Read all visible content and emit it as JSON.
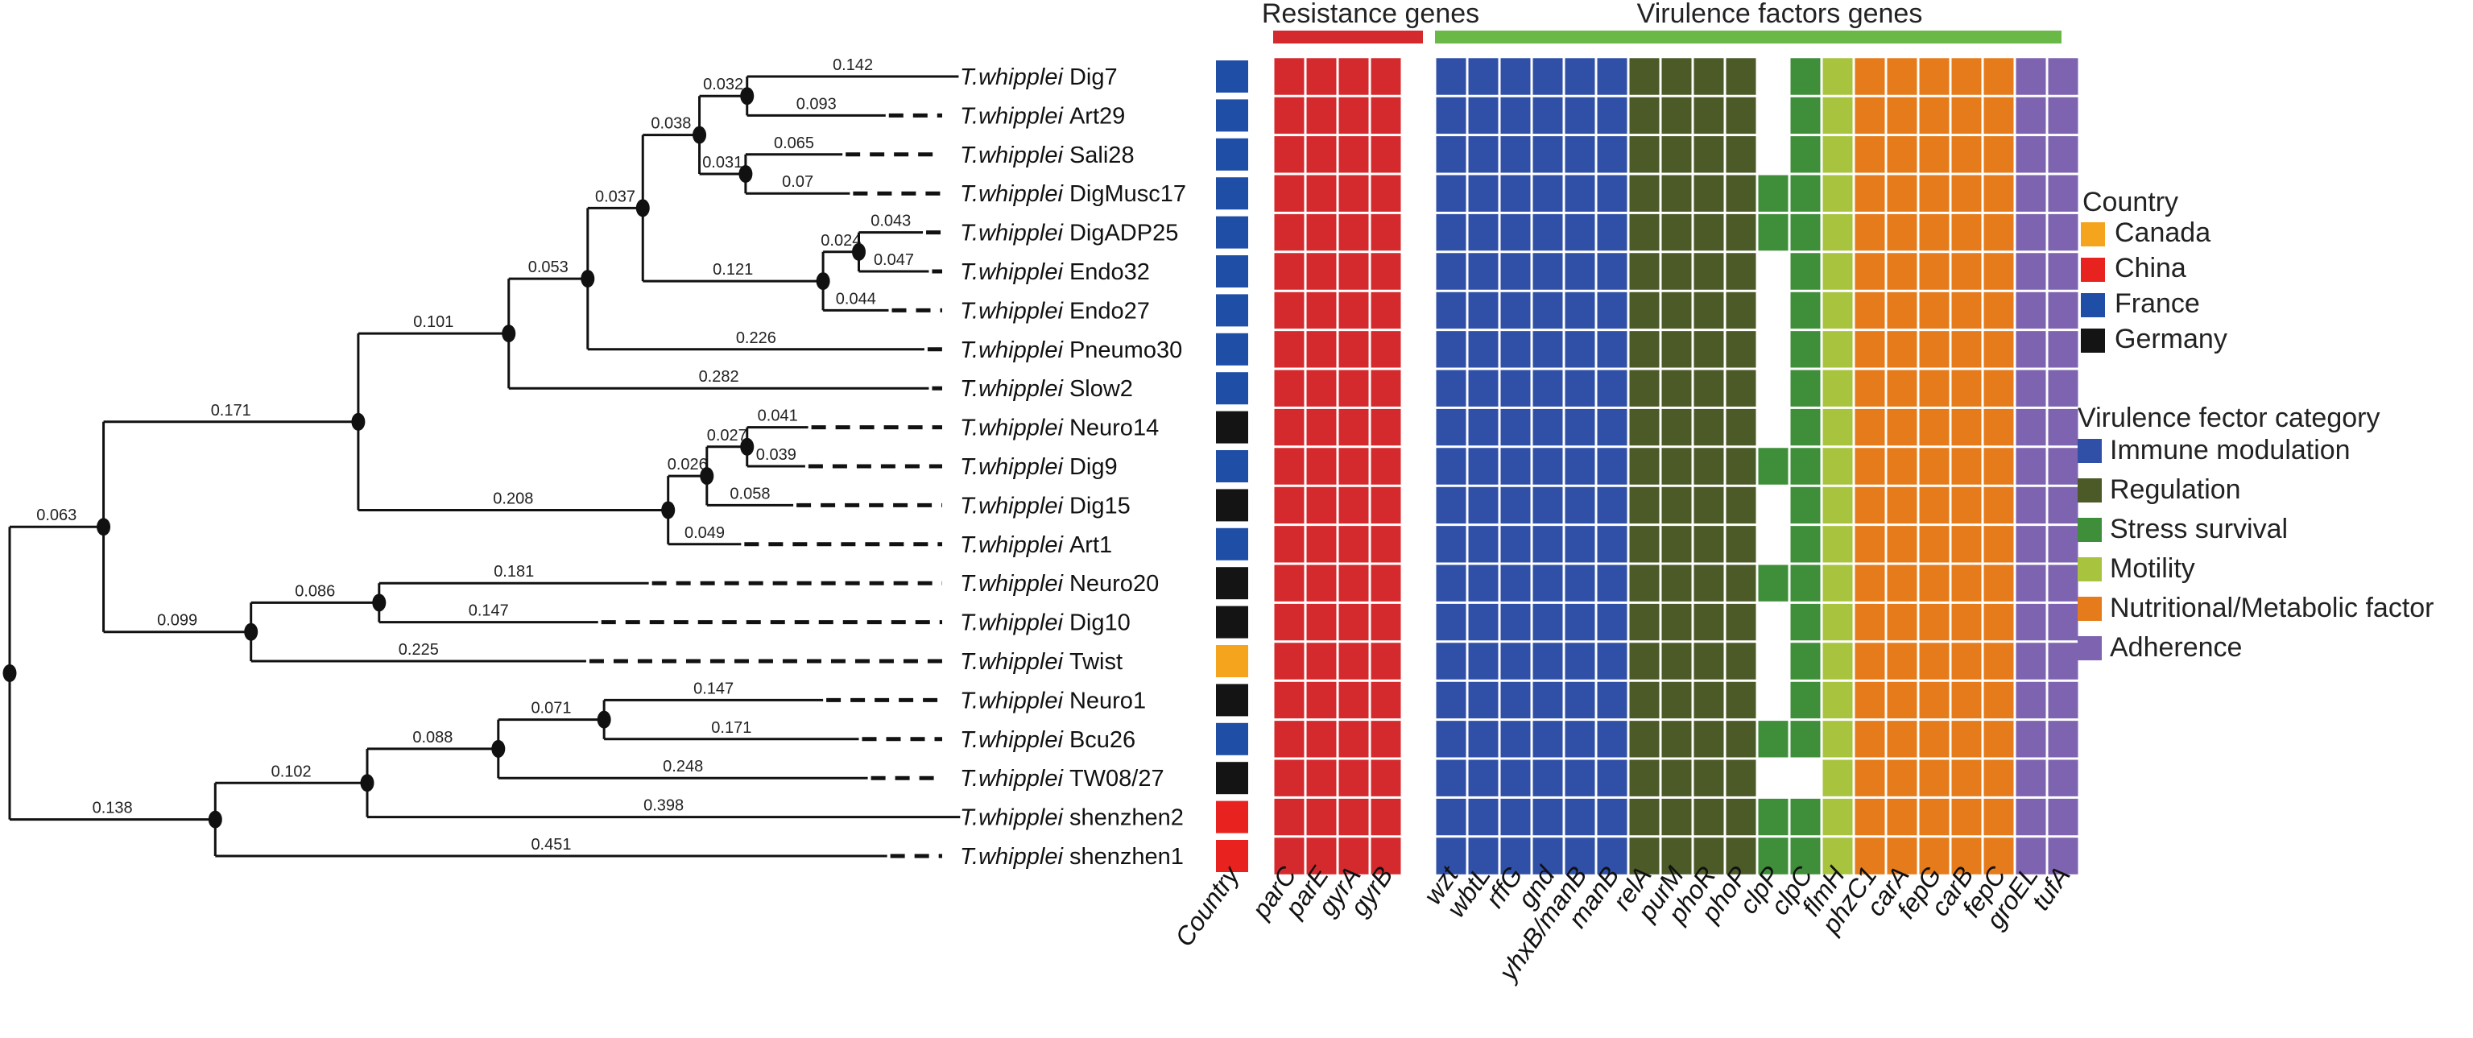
{
  "header": {
    "resistance_label": "Resistance genes",
    "virulence_label": "Virulence factors genes",
    "resistance_color": "#d42a2e",
    "virulence_color": "#6ab845"
  },
  "tree": {
    "nodes": [
      {
        "id": "root",
        "parent": null,
        "depth": 0,
        "marker": true
      },
      {
        "id": "A",
        "parent": "root",
        "depth": 0.063,
        "marker": true,
        "label": "0.063"
      },
      {
        "id": "B",
        "parent": "root",
        "depth": 0.138,
        "marker": true,
        "label": "0.138"
      },
      {
        "id": "C",
        "parent": "A",
        "depth": 0.234,
        "marker": true,
        "label": "0.171"
      },
      {
        "id": "D",
        "parent": "A",
        "depth": 0.162,
        "marker": true,
        "label": "0.099"
      },
      {
        "id": "E",
        "parent": "C",
        "depth": 0.335,
        "marker": true,
        "label": "0.101"
      },
      {
        "id": "F",
        "parent": "E",
        "depth": 0.388,
        "marker": true,
        "label": "0.053"
      },
      {
        "id": "G",
        "parent": "F",
        "depth": 0.425,
        "marker": true,
        "label": "0.037"
      },
      {
        "id": "H",
        "parent": "G",
        "depth": 0.463,
        "marker": true,
        "label": "0.038"
      },
      {
        "id": "I",
        "parent": "H",
        "depth": 0.495,
        "marker": true,
        "label": "0.032"
      },
      {
        "id": "J",
        "parent": "H",
        "depth": 0.494,
        "marker": true,
        "label": "0.031"
      },
      {
        "id": "K",
        "parent": "G",
        "depth": 0.546,
        "marker": true,
        "label": "0.121"
      },
      {
        "id": "L",
        "parent": "K",
        "depth": 0.57,
        "marker": true,
        "label": "0.024"
      },
      {
        "id": "M",
        "parent": "C",
        "depth": 0.442,
        "marker": true,
        "label": "0.208"
      },
      {
        "id": "N",
        "parent": "M",
        "depth": 0.468,
        "marker": true,
        "label": "0.026"
      },
      {
        "id": "O",
        "parent": "N",
        "depth": 0.495,
        "marker": true,
        "label": "0.027"
      },
      {
        "id": "P",
        "parent": "D",
        "depth": 0.248,
        "marker": true,
        "label": "0.086"
      },
      {
        "id": "Q",
        "parent": "B",
        "depth": 0.24,
        "marker": true,
        "label": "0.102"
      },
      {
        "id": "R",
        "parent": "Q",
        "depth": 0.328,
        "marker": true,
        "label": "0.088"
      },
      {
        "id": "S",
        "parent": "R",
        "depth": 0.399,
        "marker": true,
        "label": "0.071"
      }
    ],
    "leaves": [
      {
        "parent": "I",
        "depth": 0.637,
        "label": "0.142"
      },
      {
        "parent": "I",
        "depth": 0.588,
        "label": "0.093"
      },
      {
        "parent": "J",
        "depth": 0.559,
        "label": "0.065"
      },
      {
        "parent": "J",
        "depth": 0.564,
        "label": "0.07"
      },
      {
        "parent": "L",
        "depth": 0.613,
        "label": "0.043"
      },
      {
        "parent": "L",
        "depth": 0.617,
        "label": "0.047"
      },
      {
        "parent": "K",
        "depth": 0.59,
        "label": "0.044"
      },
      {
        "parent": "F",
        "depth": 0.614,
        "label": "0.226"
      },
      {
        "parent": "E",
        "depth": 0.617,
        "label": "0.282"
      },
      {
        "parent": "O",
        "depth": 0.536,
        "label": "0.041"
      },
      {
        "parent": "O",
        "depth": 0.534,
        "label": "0.039"
      },
      {
        "parent": "N",
        "depth": 0.526,
        "label": "0.058"
      },
      {
        "parent": "M",
        "depth": 0.491,
        "label": "0.049"
      },
      {
        "parent": "P",
        "depth": 0.429,
        "label": "0.181"
      },
      {
        "parent": "P",
        "depth": 0.395,
        "label": "0.147"
      },
      {
        "parent": "D",
        "depth": 0.387,
        "label": "0.225"
      },
      {
        "parent": "S",
        "depth": 0.546,
        "label": "0.147"
      },
      {
        "parent": "S",
        "depth": 0.57,
        "label": "0.171"
      },
      {
        "parent": "R",
        "depth": 0.576,
        "label": "0.248"
      },
      {
        "parent": "Q",
        "depth": 0.638,
        "label": "0.398"
      },
      {
        "parent": "B",
        "depth": 0.589,
        "label": "0.451"
      }
    ]
  },
  "strains": [
    {
      "genus": "T.whipplei",
      "name": "Dig7",
      "country": "France"
    },
    {
      "genus": "T.whipplei",
      "name": "Art29",
      "country": "France"
    },
    {
      "genus": "T.whipplei",
      "name": "Sali28",
      "country": "France"
    },
    {
      "genus": "T.whipplei",
      "name": "DigMusc17",
      "country": "France"
    },
    {
      "genus": "T.whipplei",
      "name": "DigADP25",
      "country": "France"
    },
    {
      "genus": "T.whipplei",
      "name": "Endo32",
      "country": "France"
    },
    {
      "genus": "T.whipplei",
      "name": "Endo27",
      "country": "France"
    },
    {
      "genus": "T.whipplei",
      "name": "Pneumo30",
      "country": "France"
    },
    {
      "genus": "T.whipplei",
      "name": "Slow2",
      "country": "France"
    },
    {
      "genus": "T.whipplei",
      "name": "Neuro14",
      "country": "Germany"
    },
    {
      "genus": "T.whipplei",
      "name": "Dig9",
      "country": "France"
    },
    {
      "genus": "T.whipplei",
      "name": "Dig15",
      "country": "Germany"
    },
    {
      "genus": "T.whipplei",
      "name": "Art1",
      "country": "France"
    },
    {
      "genus": "T.whipplei",
      "name": "Neuro20",
      "country": "Germany"
    },
    {
      "genus": "T.whipplei",
      "name": "Dig10",
      "country": "Germany"
    },
    {
      "genus": "T.whipplei",
      "name": "Twist",
      "country": "Canada"
    },
    {
      "genus": "T.whipplei",
      "name": "Neuro1",
      "country": "Germany"
    },
    {
      "genus": "T.whipplei",
      "name": "Bcu26",
      "country": "France"
    },
    {
      "genus": "T.whipplei",
      "name": "TW08/27",
      "country": "Germany"
    },
    {
      "genus": "T.whipplei",
      "name": "shenzhen2",
      "country": "China"
    },
    {
      "genus": "T.whipplei",
      "name": "shenzhen1",
      "country": "China"
    }
  ],
  "countries": {
    "Canada": "#f5a41d",
    "China": "#e8231f",
    "France": "#1f4ea6",
    "Germany": "#141414"
  },
  "categories": {
    "Resistance": "#d42a2e",
    "Immune modulation": "#3050a8",
    "Regulation": "#4b5a27",
    "Stress survival": "#3f8f3a",
    "Motility": "#a8c43e",
    "Nutritional/Metabolic factor": "#e57b1a",
    "Adherence": "#7e63b0"
  },
  "genes": [
    {
      "name": "parC",
      "category": "Resistance",
      "present": [
        1,
        1,
        1,
        1,
        1,
        1,
        1,
        1,
        1,
        1,
        1,
        1,
        1,
        1,
        1,
        1,
        1,
        1,
        1,
        1,
        1
      ]
    },
    {
      "name": "parE",
      "category": "Resistance",
      "present": [
        1,
        1,
        1,
        1,
        1,
        1,
        1,
        1,
        1,
        1,
        1,
        1,
        1,
        1,
        1,
        1,
        1,
        1,
        1,
        1,
        1
      ]
    },
    {
      "name": "gyrA",
      "category": "Resistance",
      "present": [
        1,
        1,
        1,
        1,
        1,
        1,
        1,
        1,
        1,
        1,
        1,
        1,
        1,
        1,
        1,
        1,
        1,
        1,
        1,
        1,
        1
      ]
    },
    {
      "name": "gyrB",
      "category": "Resistance",
      "present": [
        1,
        1,
        1,
        1,
        1,
        1,
        1,
        1,
        1,
        1,
        1,
        1,
        1,
        1,
        1,
        1,
        1,
        1,
        1,
        1,
        1
      ]
    },
    {
      "name": "wzt",
      "category": "Immune modulation",
      "present": [
        1,
        1,
        1,
        1,
        1,
        1,
        1,
        1,
        1,
        1,
        1,
        1,
        1,
        1,
        1,
        1,
        1,
        1,
        1,
        1,
        1
      ]
    },
    {
      "name": "wbtL",
      "category": "Immune modulation",
      "present": [
        1,
        1,
        1,
        1,
        1,
        1,
        1,
        1,
        1,
        1,
        1,
        1,
        1,
        1,
        1,
        1,
        1,
        1,
        1,
        1,
        1
      ]
    },
    {
      "name": "rffG",
      "category": "Immune modulation",
      "present": [
        1,
        1,
        1,
        1,
        1,
        1,
        1,
        1,
        1,
        1,
        1,
        1,
        1,
        1,
        1,
        1,
        1,
        1,
        1,
        1,
        1
      ]
    },
    {
      "name": "gnd",
      "category": "Immune modulation",
      "present": [
        1,
        1,
        1,
        1,
        1,
        1,
        1,
        1,
        1,
        1,
        1,
        1,
        1,
        1,
        1,
        1,
        1,
        1,
        1,
        1,
        1
      ]
    },
    {
      "name": "yhxB/manB",
      "category": "Immune modulation",
      "present": [
        1,
        1,
        1,
        1,
        1,
        1,
        1,
        1,
        1,
        1,
        1,
        1,
        1,
        1,
        1,
        1,
        1,
        1,
        1,
        1,
        1
      ]
    },
    {
      "name": "manB",
      "category": "Immune modulation",
      "present": [
        1,
        1,
        1,
        1,
        1,
        1,
        1,
        1,
        1,
        1,
        1,
        1,
        1,
        1,
        1,
        1,
        1,
        1,
        1,
        1,
        1
      ]
    },
    {
      "name": "relA",
      "category": "Regulation",
      "present": [
        1,
        1,
        1,
        1,
        1,
        1,
        1,
        1,
        1,
        1,
        1,
        1,
        1,
        1,
        1,
        1,
        1,
        1,
        1,
        1,
        1
      ]
    },
    {
      "name": "purM",
      "category": "Regulation",
      "present": [
        1,
        1,
        1,
        1,
        1,
        1,
        1,
        1,
        1,
        1,
        1,
        1,
        1,
        1,
        1,
        1,
        1,
        1,
        1,
        1,
        1
      ]
    },
    {
      "name": "phoR",
      "category": "Regulation",
      "present": [
        1,
        1,
        1,
        1,
        1,
        1,
        1,
        1,
        1,
        1,
        1,
        1,
        1,
        1,
        1,
        1,
        1,
        1,
        1,
        1,
        1
      ]
    },
    {
      "name": "phoP",
      "category": "Regulation",
      "present": [
        1,
        1,
        1,
        1,
        1,
        1,
        1,
        1,
        1,
        1,
        1,
        1,
        1,
        1,
        1,
        1,
        1,
        1,
        1,
        1,
        1
      ]
    },
    {
      "name": "clpP",
      "category": "Stress survival",
      "present": [
        0,
        0,
        0,
        1,
        1,
        0,
        0,
        0,
        0,
        0,
        1,
        0,
        0,
        1,
        0,
        0,
        0,
        1,
        0,
        1,
        1
      ]
    },
    {
      "name": "clpC",
      "category": "Stress survival",
      "present": [
        1,
        1,
        1,
        1,
        1,
        1,
        1,
        1,
        1,
        1,
        1,
        1,
        1,
        1,
        1,
        1,
        1,
        1,
        0,
        1,
        1
      ]
    },
    {
      "name": "flmH",
      "category": "Motility",
      "present": [
        1,
        1,
        1,
        1,
        1,
        1,
        1,
        1,
        1,
        1,
        1,
        1,
        1,
        1,
        1,
        1,
        1,
        1,
        1,
        1,
        1
      ]
    },
    {
      "name": "phzC1",
      "category": "Nutritional/Metabolic factor",
      "present": [
        1,
        1,
        1,
        1,
        1,
        1,
        1,
        1,
        1,
        1,
        1,
        1,
        1,
        1,
        1,
        1,
        1,
        1,
        1,
        1,
        1
      ]
    },
    {
      "name": "carA",
      "category": "Nutritional/Metabolic factor",
      "present": [
        1,
        1,
        1,
        1,
        1,
        1,
        1,
        1,
        1,
        1,
        1,
        1,
        1,
        1,
        1,
        1,
        1,
        1,
        1,
        1,
        1
      ]
    },
    {
      "name": "fepG",
      "category": "Nutritional/Metabolic factor",
      "present": [
        1,
        1,
        1,
        1,
        1,
        1,
        1,
        1,
        1,
        1,
        1,
        1,
        1,
        1,
        1,
        1,
        1,
        1,
        1,
        1,
        1
      ]
    },
    {
      "name": "carB",
      "category": "Nutritional/Metabolic factor",
      "present": [
        1,
        1,
        1,
        1,
        1,
        1,
        1,
        1,
        1,
        1,
        1,
        1,
        1,
        1,
        1,
        1,
        1,
        1,
        1,
        1,
        1
      ]
    },
    {
      "name": "fepC",
      "category": "Nutritional/Metabolic factor",
      "present": [
        1,
        1,
        1,
        1,
        1,
        1,
        1,
        1,
        1,
        1,
        1,
        1,
        1,
        1,
        1,
        1,
        1,
        1,
        1,
        1,
        1
      ]
    },
    {
      "name": "groEL",
      "category": "Adherence",
      "present": [
        1,
        1,
        1,
        1,
        1,
        1,
        1,
        1,
        1,
        1,
        1,
        1,
        1,
        1,
        1,
        1,
        1,
        1,
        1,
        1,
        1
      ]
    },
    {
      "name": "tufA",
      "category": "Adherence",
      "present": [
        1,
        1,
        1,
        1,
        1,
        1,
        1,
        1,
        1,
        1,
        1,
        1,
        1,
        1,
        1,
        1,
        1,
        1,
        1,
        1,
        1
      ]
    }
  ],
  "column_labels": {
    "country": "Country"
  },
  "legend": {
    "country_title": "Country",
    "country_items": [
      "Canada",
      "China",
      "France",
      "Germany"
    ],
    "category_title": "Virulence fector category",
    "category_items": [
      "Immune modulation",
      "Regulation",
      "Stress survival",
      "Motility",
      "Nutritional/Metabolic factor",
      "Adherence"
    ]
  }
}
